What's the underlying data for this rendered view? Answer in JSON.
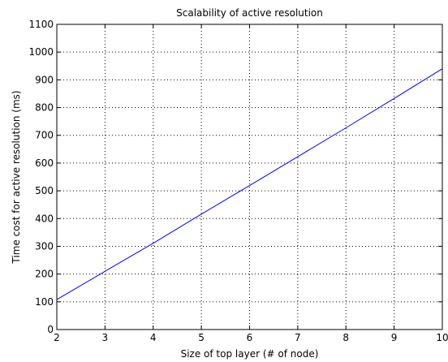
{
  "chart_data": {
    "type": "line",
    "title": "Scalability of active resolution",
    "xlabel": "Size of top layer (# of node)",
    "ylabel": "Time cost for active resolution (ms)",
    "xlim": [
      2,
      10
    ],
    "ylim": [
      0,
      1100
    ],
    "x_ticks": [
      2,
      3,
      4,
      5,
      6,
      7,
      8,
      9,
      10
    ],
    "y_ticks": [
      0,
      100,
      200,
      300,
      400,
      500,
      600,
      700,
      800,
      900,
      1000,
      1100
    ],
    "grid": true,
    "grid_style": "dotted",
    "series": [
      {
        "color": "#0000ff",
        "x": [
          2,
          3,
          4,
          5,
          6,
          7,
          8,
          9,
          10
        ],
        "y": [
          108,
          210,
          311,
          416,
          519,
          623,
          727,
          833,
          940
        ]
      }
    ]
  }
}
